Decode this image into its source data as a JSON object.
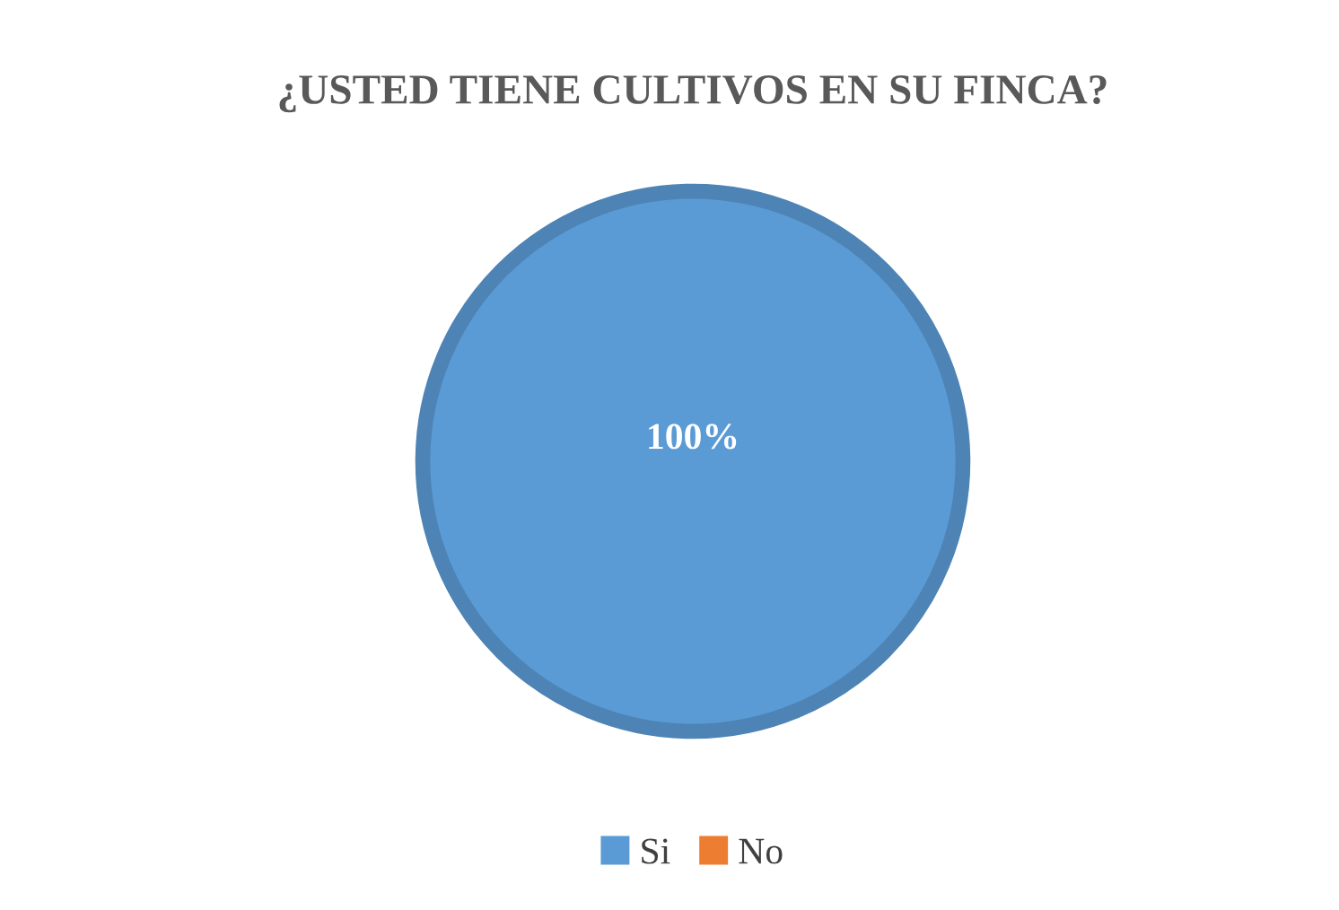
{
  "chart_data": {
    "type": "pie",
    "title": "¿USTED TIENE CULTIVOS EN SU FINCA?",
    "categories": [
      "Si",
      "No"
    ],
    "values": [
      100,
      0
    ],
    "colors": [
      "#5b9bd5",
      "#ed7d31"
    ],
    "value_labels": [
      "100%",
      null
    ],
    "legend": "bottom"
  }
}
